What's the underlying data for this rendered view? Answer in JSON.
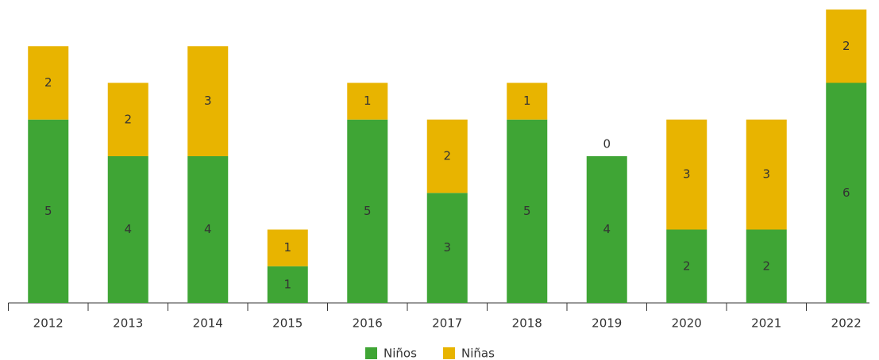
{
  "chart_data": {
    "type": "stacked_bar",
    "categories": [
      "2012",
      "2013",
      "2014",
      "2015",
      "2016",
      "2017",
      "2018",
      "2019",
      "2020",
      "2021",
      "2022"
    ],
    "series": [
      {
        "name": "Niños",
        "color": "#3fa535",
        "values": [
          5,
          4,
          4,
          1,
          5,
          3,
          5,
          4,
          2,
          2,
          6
        ]
      },
      {
        "name": "Niñas",
        "color": "#e8b400",
        "values": [
          2,
          2,
          3,
          1,
          1,
          2,
          1,
          0,
          3,
          3,
          2
        ]
      }
    ],
    "legend": "bottom"
  }
}
